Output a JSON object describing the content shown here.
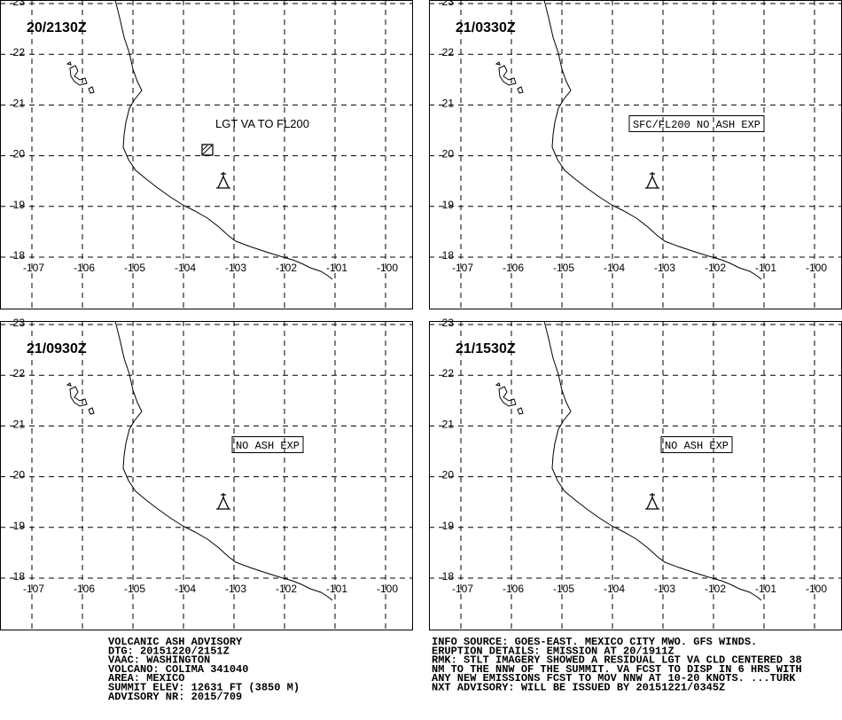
{
  "panels": [
    {
      "time": "20/2130Z",
      "note": "LGT VA TO FL200"
    },
    {
      "time": "21/0330Z",
      "note": "SFC/FL200 NO ASH EXP"
    },
    {
      "time": "21/0930Z",
      "note": "NO ASH EXP"
    },
    {
      "time": "21/1530Z",
      "note": "NO ASH EXP"
    }
  ],
  "x_ticks": [
    -107,
    -106,
    -105,
    -104,
    -103,
    -102,
    -101,
    -100
  ],
  "y_ticks": [
    18,
    19,
    20,
    21,
    22,
    23
  ],
  "advisory_left": [
    "VOLCANIC ASH ADVISORY",
    "DTG: 20151220/2151Z",
    "VAAC: WASHINGTON",
    "VOLCANO: COLIMA 341040",
    "AREA: MEXICO",
    "SUMMIT ELEV: 12631 FT (3850 M)",
    "ADVISORY NR: 2015/709"
  ],
  "advisory_right": [
    "INFO SOURCE: GOES-EAST. MEXICO CITY MWO. GFS WINDS.",
    "ERUPTION DETAILS: EMISSION AT 20/1911Z",
    "RMK: STLT IMAGERY SHOWED A RESIDUAL LGT VA CLD CENTERED 38",
    "NM TO THE NNW OF THE SUMMIT. VA FCST TO DISP IN 6 HRS WITH",
    "ANY NEW EMISSIONS FCST TO MOV NNW AT 10-20 KNOTS. ...TURK",
    "NXT ADVISORY: WILL BE ISSUED BY 20151221/0345Z"
  ]
}
